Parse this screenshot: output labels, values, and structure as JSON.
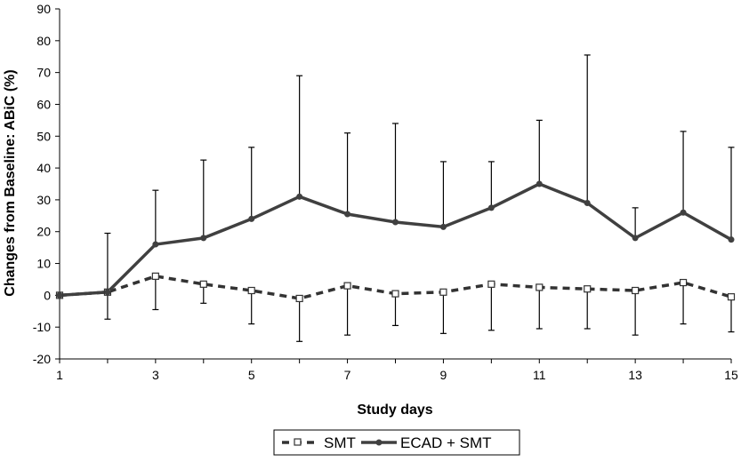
{
  "chart_data": {
    "type": "line",
    "xlabel": "Study days",
    "ylabel": "Changes from Baseline: ABiC (%)",
    "xlim": [
      1,
      15
    ],
    "ylim": [
      -20,
      90
    ],
    "x_ticks": [
      1,
      3,
      5,
      7,
      9,
      11,
      13,
      15
    ],
    "y_ticks": [
      -20,
      -10,
      0,
      10,
      20,
      30,
      40,
      50,
      60,
      70,
      80,
      90
    ],
    "grid": false,
    "legend_position": "bottom-center",
    "x": [
      1,
      2,
      3,
      4,
      5,
      6,
      7,
      8,
      9,
      10,
      11,
      12,
      13,
      14,
      15
    ],
    "series": [
      {
        "name": "SMT",
        "style": "dashed",
        "marker": "open-square",
        "color": "#333333",
        "values": [
          0,
          1,
          6,
          3.5,
          1.5,
          -1,
          3,
          0.5,
          1,
          3.5,
          2.5,
          2,
          1.5,
          4,
          -0.5
        ],
        "error_direction": "down",
        "error_ends": [
          0,
          -7.5,
          -4.5,
          -2.5,
          -9,
          -14.5,
          -12.5,
          -9.5,
          -12,
          -11,
          -10.5,
          -10.5,
          -12.5,
          -9,
          -11.5
        ]
      },
      {
        "name": "ECAD + SMT",
        "style": "solid",
        "marker": "filled-circle",
        "color": "#404040",
        "values": [
          0,
          1,
          16,
          18,
          24,
          31,
          25.5,
          23,
          21.5,
          27.5,
          35,
          29,
          18,
          26,
          17.5
        ],
        "error_direction": "up",
        "error_ends": [
          0,
          19.5,
          33,
          42.5,
          46.5,
          69,
          51,
          54,
          42,
          42,
          55,
          75.5,
          27.5,
          51.5,
          46.5
        ]
      }
    ]
  }
}
